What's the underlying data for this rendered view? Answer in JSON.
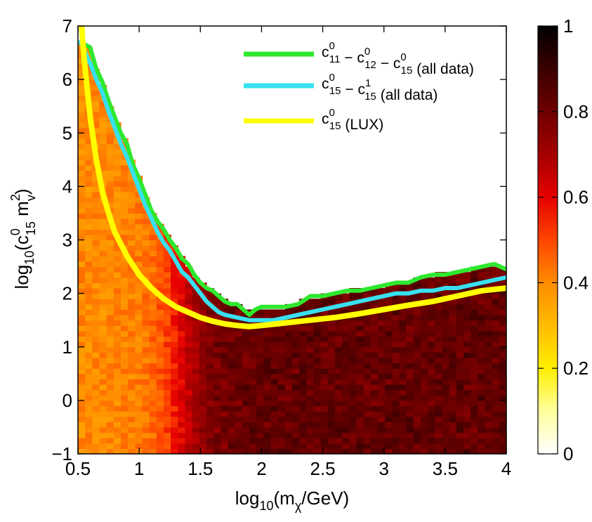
{
  "chart_data": {
    "type": "heatmap",
    "title": "",
    "xlabel": {
      "main": "log",
      "sub1": "10",
      "mid": "(m",
      "sub2": "χ",
      "tail": "/GeV)"
    },
    "ylabel": {
      "main": "log",
      "sub1": "10",
      "paren": "(c",
      "sup1": "0",
      "sub2": "15",
      "m": " m",
      "sup2": "2",
      "sub3": "v",
      "close": ")"
    },
    "xlim": [
      0.5,
      4
    ],
    "ylim": [
      -1,
      7
    ],
    "x_ticks": [
      "0.5",
      "1",
      "1.5",
      "2",
      "2.5",
      "3",
      "3.5",
      "4"
    ],
    "y_ticks": [
      "−1",
      "0",
      "1",
      "2",
      "3",
      "4",
      "5",
      "6",
      "7"
    ],
    "colorbar": {
      "range": [
        0,
        1
      ],
      "ticks": [
        "0",
        "0.2",
        "0.4",
        "0.6",
        "0.8",
        "1"
      ],
      "colormap": [
        "#ffffff",
        "#ffff9e",
        "#ffee00",
        "#ffbb00",
        "#ff8c00",
        "#ff4500",
        "#e60000",
        "#a50000",
        "#6e0000",
        "#3a0000",
        "#000000"
      ]
    },
    "series": [
      {
        "color": "#2ee82e",
        "legend": {
          "base": "c",
          "terms": [
            {
              "sup": "0",
              "sub": "11"
            },
            {
              "sup": "0",
              "sub": "12"
            },
            {
              "sup": "0",
              "sub": "15"
            }
          ],
          "suffix": " (all data)"
        },
        "x": [
          0.52,
          0.6,
          0.65,
          0.7,
          0.75,
          0.8,
          0.85,
          0.9,
          0.95,
          1.0,
          1.05,
          1.1,
          1.15,
          1.2,
          1.25,
          1.3,
          1.35,
          1.4,
          1.45,
          1.5,
          1.55,
          1.6,
          1.65,
          1.7,
          1.75,
          1.8,
          1.85,
          1.9,
          1.95,
          2.0,
          2.1,
          2.2,
          2.3,
          2.4,
          2.5,
          2.6,
          2.7,
          2.8,
          2.9,
          3.0,
          3.1,
          3.2,
          3.3,
          3.4,
          3.5,
          3.6,
          3.7,
          3.8,
          3.9,
          4.0
        ],
        "y": [
          6.7,
          6.6,
          6.2,
          5.95,
          5.6,
          5.3,
          5.0,
          4.8,
          4.4,
          4.15,
          3.85,
          3.55,
          3.35,
          3.2,
          3.0,
          2.85,
          2.65,
          2.55,
          2.35,
          2.2,
          2.1,
          2.05,
          1.95,
          1.85,
          1.8,
          1.8,
          1.7,
          1.6,
          1.7,
          1.75,
          1.75,
          1.75,
          1.8,
          1.95,
          1.95,
          2.0,
          2.05,
          2.05,
          2.1,
          2.15,
          2.2,
          2.2,
          2.3,
          2.35,
          2.35,
          2.4,
          2.45,
          2.5,
          2.55,
          2.45
        ]
      },
      {
        "color": "#38e0f0",
        "legend": {
          "base": "c",
          "terms": [
            {
              "sup": "0",
              "sub": "15"
            },
            {
              "sup": "1",
              "sub": "15"
            }
          ],
          "suffix": " (all data)"
        },
        "x": [
          0.52,
          0.6,
          0.65,
          0.7,
          0.75,
          0.8,
          0.85,
          0.9,
          0.95,
          1.0,
          1.05,
          1.1,
          1.15,
          1.2,
          1.25,
          1.3,
          1.35,
          1.4,
          1.45,
          1.5,
          1.55,
          1.6,
          1.65,
          1.7,
          1.8,
          1.9,
          2.0,
          2.1,
          2.2,
          2.3,
          2.4,
          2.5,
          2.6,
          2.7,
          2.8,
          2.9,
          3.0,
          3.1,
          3.2,
          3.3,
          3.4,
          3.5,
          3.6,
          3.7,
          3.8,
          3.9,
          4.0
        ],
        "y": [
          6.7,
          6.3,
          6.0,
          5.75,
          5.4,
          5.1,
          4.8,
          4.55,
          4.25,
          3.95,
          3.65,
          3.4,
          3.15,
          2.95,
          2.8,
          2.6,
          2.4,
          2.3,
          2.15,
          2.0,
          1.85,
          1.75,
          1.65,
          1.6,
          1.55,
          1.5,
          1.5,
          1.5,
          1.55,
          1.6,
          1.65,
          1.7,
          1.75,
          1.8,
          1.85,
          1.9,
          1.95,
          2.0,
          2.0,
          2.05,
          2.05,
          2.1,
          2.1,
          2.15,
          2.2,
          2.25,
          2.3
        ]
      },
      {
        "color": "#ffff00",
        "legend": {
          "base": "c",
          "terms": [
            {
              "sup": "0",
              "sub": "15"
            }
          ],
          "suffix": " (LUX)"
        },
        "x": [
          0.53,
          0.55,
          0.6,
          0.65,
          0.7,
          0.75,
          0.8,
          0.9,
          1.0,
          1.1,
          1.2,
          1.3,
          1.4,
          1.5,
          1.6,
          1.7,
          1.8,
          1.9,
          2.0,
          2.2,
          2.4,
          2.6,
          2.8,
          3.0,
          3.2,
          3.4,
          3.6,
          3.8,
          4.0
        ],
        "y": [
          7.0,
          6.4,
          5.3,
          4.5,
          3.9,
          3.5,
          3.15,
          2.7,
          2.35,
          2.1,
          1.9,
          1.75,
          1.65,
          1.55,
          1.48,
          1.43,
          1.4,
          1.38,
          1.4,
          1.45,
          1.5,
          1.55,
          1.62,
          1.7,
          1.78,
          1.85,
          1.95,
          2.05,
          2.1
        ]
      }
    ]
  }
}
